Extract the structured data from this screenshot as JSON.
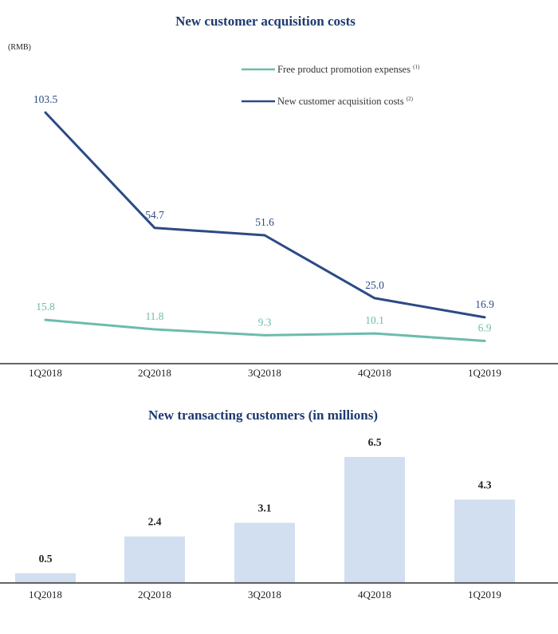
{
  "colors": {
    "title": "#1d3a70",
    "dark_line": "#2b4a86",
    "teal_line": "#6cbcaa",
    "bar": "#d1dff0",
    "axis": "#333333"
  },
  "chart_data": [
    {
      "type": "line",
      "title": "New customer acquisition costs",
      "unit_label": "(RMB)",
      "categories": [
        "1Q2018",
        "2Q2018",
        "3Q2018",
        "4Q2018",
        "1Q2019"
      ],
      "ylim": [
        0,
        115
      ],
      "legend_position": "top-right",
      "series": [
        {
          "name": "Free product promotion expenses",
          "footnote": "(1)",
          "color": "#6cbcaa",
          "values": [
            15.8,
            11.8,
            9.3,
            10.1,
            6.9
          ],
          "labels": [
            "15.8",
            "11.8",
            "9.3",
            "10.1",
            "6.9"
          ]
        },
        {
          "name": "New customer acquisition costs",
          "footnote": "(2)",
          "color": "#2b4a86",
          "values": [
            103.5,
            54.7,
            51.6,
            25.0,
            16.9
          ],
          "labels": [
            "103.5",
            "54.7",
            "51.6",
            "25.0",
            "16.9"
          ]
        }
      ]
    },
    {
      "type": "bar",
      "title": "New transacting customers (in millions)",
      "categories": [
        "1Q2018",
        "2Q2018",
        "3Q2018",
        "4Q2018",
        "1Q2019"
      ],
      "values": [
        0.5,
        2.4,
        3.1,
        6.5,
        4.3
      ],
      "labels": [
        "0.5",
        "2.4",
        "3.1",
        "6.5",
        "4.3"
      ],
      "ylim": [
        0,
        7.0
      ]
    }
  ]
}
